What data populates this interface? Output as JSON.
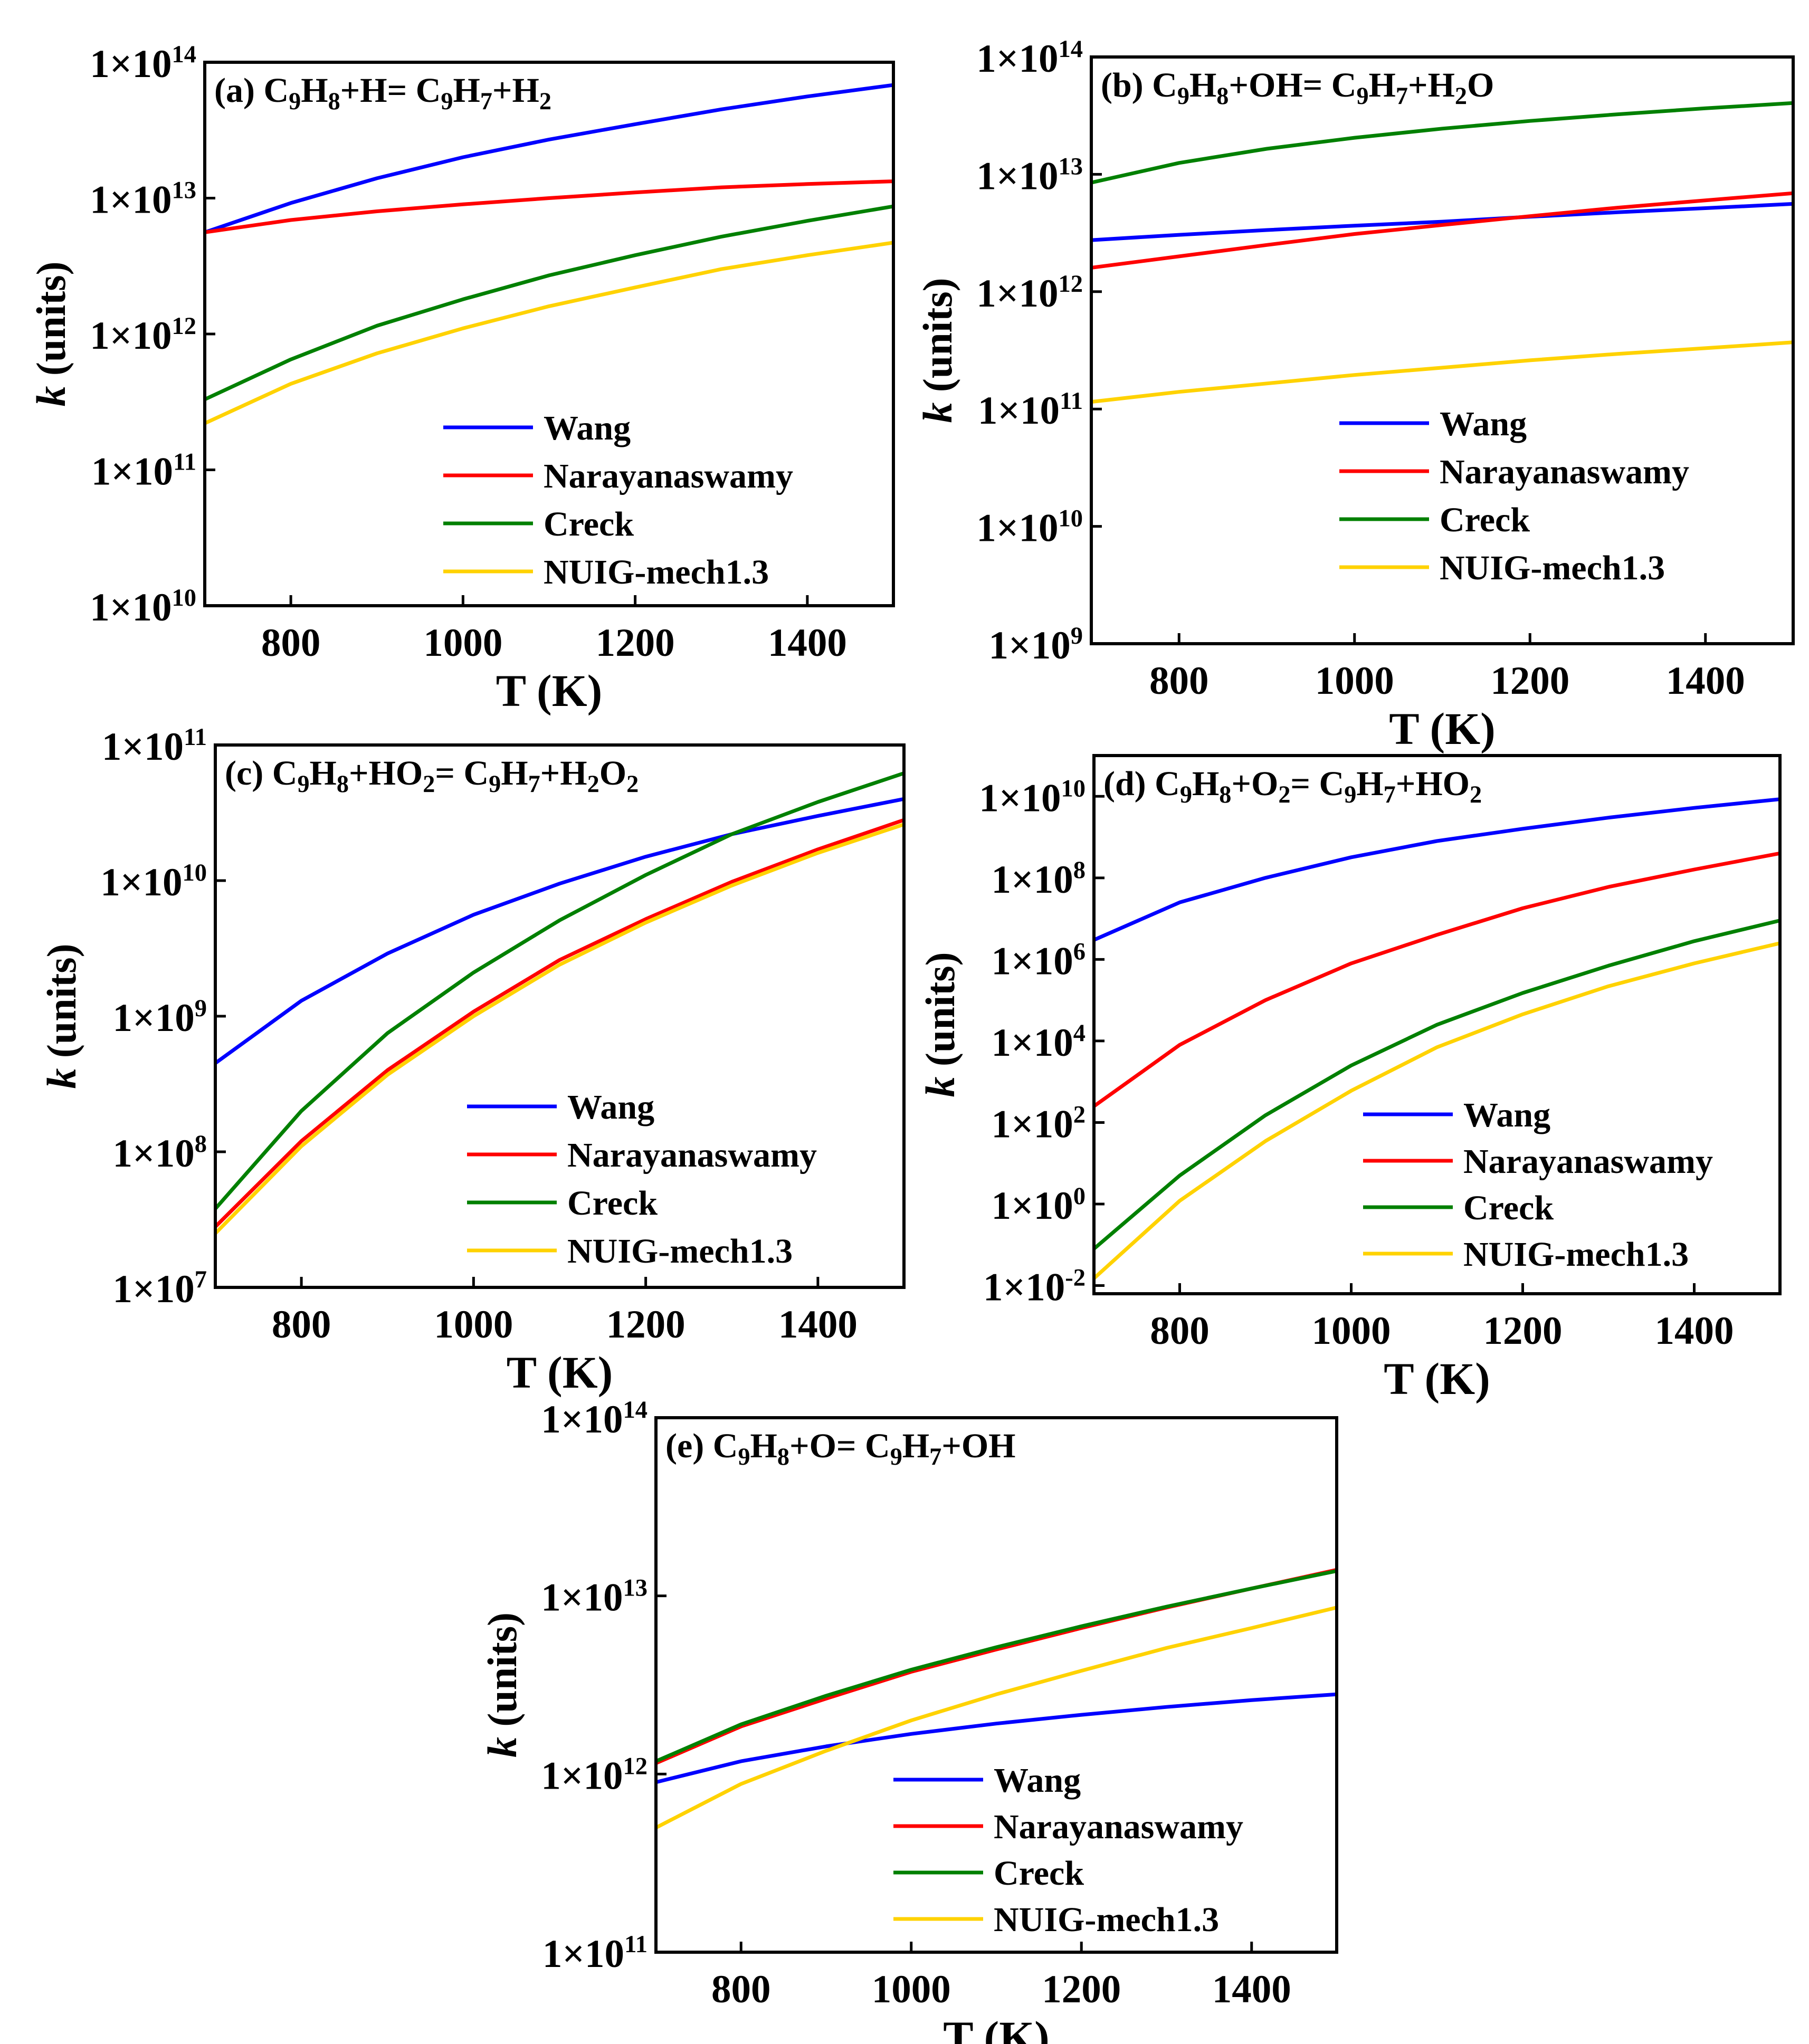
{
  "chart_data": [
    {
      "id": "a",
      "type": "line",
      "title": {
        "prefix": "(a) ",
        "parts": [
          [
            "C",
            ""
          ],
          [
            "9",
            "sub"
          ],
          [
            "H",
            ""
          ],
          [
            "8",
            "sub"
          ],
          [
            "+H= C",
            ""
          ],
          [
            "9",
            "sub"
          ],
          [
            "H",
            ""
          ],
          [
            "7",
            "sub"
          ],
          [
            "+H",
            ""
          ],
          [
            "2",
            "sub"
          ]
        ]
      },
      "title_text": "(a) C9H8+H= C9H7+H2",
      "xlabel": "T (K)",
      "ylabel": "k (units)",
      "xlim": [
        700,
        1500
      ],
      "xticks": [
        800,
        1000,
        1200,
        1400
      ],
      "ylim_exp": [
        10,
        14
      ],
      "yticks_exp": [
        10,
        11,
        12,
        13,
        14
      ],
      "ytick_labels": [
        "1×10^10",
        "1×10^11",
        "1×10^12",
        "1×10^13",
        "1×10^14"
      ],
      "legend_position": "lower-right",
      "x": [
        700,
        800,
        900,
        1000,
        1100,
        1200,
        1300,
        1400,
        1500
      ],
      "series": [
        {
          "name": "Wang",
          "color": "#0000ff",
          "values": [
            5600000000000.0,
            9200000000000.0,
            14000000000000.0,
            20000000000000.0,
            27000000000000.0,
            35000000000000.0,
            45000000000000.0,
            56000000000000.0,
            68000000000000.0
          ]
        },
        {
          "name": "Narayanaswamy",
          "color": "#ff0000",
          "values": [
            5600000000000.0,
            6900000000000.0,
            8000000000000.0,
            9000000000000.0,
            10000000000000.0,
            11000000000000.0,
            12000000000000.0,
            12700000000000.0,
            13300000000000.0
          ]
        },
        {
          "name": "Creck",
          "color": "#008000",
          "values": [
            330000000000.0,
            650000000000.0,
            1150000000000.0,
            1800000000000.0,
            2700000000000.0,
            3800000000000.0,
            5200000000000.0,
            6800000000000.0,
            8700000000000.0
          ]
        },
        {
          "name": "NUIG-mech1.3",
          "color": "#ffd200",
          "values": [
            220000000000.0,
            430000000000.0,
            720000000000.0,
            1100000000000.0,
            1600000000000.0,
            2200000000000.0,
            3000000000000.0,
            3800000000000.0,
            4700000000000.0
          ]
        }
      ]
    },
    {
      "id": "b",
      "type": "line",
      "title": {
        "prefix": "(b) ",
        "parts": [
          [
            "C",
            ""
          ],
          [
            "9",
            "sub"
          ],
          [
            "H",
            ""
          ],
          [
            "8",
            "sub"
          ],
          [
            "+OH= C",
            ""
          ],
          [
            "9",
            "sub"
          ],
          [
            "H",
            ""
          ],
          [
            "7",
            "sub"
          ],
          [
            "+H",
            ""
          ],
          [
            "2",
            "sub"
          ],
          [
            "O",
            ""
          ]
        ]
      },
      "title_text": "(b) C9H8+OH= C9H7+H2O",
      "xlabel": "T (K)",
      "ylabel": "k (units)",
      "xlim": [
        700,
        1500
      ],
      "xticks": [
        800,
        1000,
        1200,
        1400
      ],
      "ylim_exp": [
        9,
        14
      ],
      "yticks_exp": [
        9,
        10,
        11,
        12,
        13,
        14
      ],
      "ytick_labels": [
        "1×10^9",
        "1×10^10",
        "1×10^11",
        "1×10^12",
        "1×10^13",
        "1×10^14"
      ],
      "legend_position": "lower-right",
      "x": [
        700,
        800,
        900,
        1000,
        1100,
        1200,
        1300,
        1400,
        1500
      ],
      "series": [
        {
          "name": "Wang",
          "color": "#0000ff",
          "values": [
            2750000000000.0,
            3050000000000.0,
            3350000000000.0,
            3650000000000.0,
            3950000000000.0,
            4350000000000.0,
            4750000000000.0,
            5150000000000.0,
            5600000000000.0
          ]
        },
        {
          "name": "Narayanaswamy",
          "color": "#ff0000",
          "values": [
            1600000000000.0,
            2000000000000.0,
            2500000000000.0,
            3100000000000.0,
            3700000000000.0,
            4400000000000.0,
            5200000000000.0,
            6000000000000.0,
            6900000000000.0
          ]
        },
        {
          "name": "Creck",
          "color": "#008000",
          "values": [
            8500000000000.0,
            12500000000000.0,
            16500000000000.0,
            20500000000000.0,
            24500000000000.0,
            28500000000000.0,
            32500000000000.0,
            36500000000000.0,
            40500000000000.0
          ]
        },
        {
          "name": "NUIG-mech1.3",
          "color": "#ffd200",
          "values": [
            115000000000.0,
            140000000000.0,
            165000000000.0,
            195000000000.0,
            225000000000.0,
            260000000000.0,
            295000000000.0,
            330000000000.0,
            370000000000.0
          ]
        }
      ]
    },
    {
      "id": "c",
      "type": "line",
      "title": {
        "prefix": "(c) ",
        "parts": [
          [
            "C",
            ""
          ],
          [
            "9",
            "sub"
          ],
          [
            "H",
            ""
          ],
          [
            "8",
            "sub"
          ],
          [
            "+HO",
            ""
          ],
          [
            "2",
            "sub"
          ],
          [
            "= C",
            ""
          ],
          [
            "9",
            "sub"
          ],
          [
            "H",
            ""
          ],
          [
            "7",
            "sub"
          ],
          [
            "+H",
            ""
          ],
          [
            "2",
            "sub"
          ],
          [
            "O",
            ""
          ],
          [
            "2",
            "sub"
          ]
        ]
      },
      "title_text": "(c) C9H8+HO2= C9H7+H2O2",
      "xlabel": "T (K)",
      "ylabel": "k (units)",
      "xlim": [
        700,
        1500
      ],
      "xticks": [
        800,
        1000,
        1200,
        1400
      ],
      "ylim_exp": [
        7,
        11
      ],
      "yticks_exp": [
        7,
        8,
        9,
        10,
        11
      ],
      "ytick_labels": [
        "1×10^7",
        "1×10^8",
        "1×10^9",
        "1×10^10",
        "1×10^11"
      ],
      "legend_position": "lower-right",
      "x": [
        700,
        800,
        900,
        1000,
        1100,
        1200,
        1300,
        1400,
        1500
      ],
      "series": [
        {
          "name": "Wang",
          "color": "#0000ff",
          "values": [
            450000000.0,
            1300000000.0,
            2900000000.0,
            5600000000.0,
            9500000000.0,
            15000000000.0,
            22000000000.0,
            30000000000.0,
            40000000000.0
          ]
        },
        {
          "name": "Narayanaswamy",
          "color": "#ff0000",
          "values": [
            28000000.0,
            120000000.0,
            400000000.0,
            1080000000.0,
            2600000000.0,
            5200000000.0,
            9800000000.0,
            17000000000.0,
            28000000000.0
          ]
        },
        {
          "name": "Creck",
          "color": "#008000",
          "values": [
            38000000.0,
            200000000.0,
            750000000.0,
            2100000000.0,
            5100000000.0,
            11000000000.0,
            22000000000.0,
            38000000000.0,
            62000000000.0
          ]
        },
        {
          "name": "NUIG-mech1.3",
          "color": "#ffd200",
          "values": [
            25000000.0,
            110000000.0,
            370000000.0,
            1000000000.0,
            2400000000.0,
            4900000000.0,
            9200000000.0,
            16000000000.0,
            26000000000.0
          ]
        }
      ]
    },
    {
      "id": "d",
      "type": "line",
      "title": {
        "prefix": "(d) ",
        "parts": [
          [
            "C",
            ""
          ],
          [
            "9",
            "sub"
          ],
          [
            "H",
            ""
          ],
          [
            "8",
            "sub"
          ],
          [
            "+O",
            ""
          ],
          [
            "2",
            "sub"
          ],
          [
            "= C",
            ""
          ],
          [
            "9",
            "sub"
          ],
          [
            "H",
            ""
          ],
          [
            "7",
            "sub"
          ],
          [
            "+HO",
            ""
          ],
          [
            "2",
            "sub"
          ]
        ]
      },
      "title_text": "(d) C9H8+O2= C9H7+HO2",
      "xlabel": "T (K)",
      "ylabel": "k (units)",
      "xlim": [
        700,
        1500
      ],
      "xticks": [
        800,
        1000,
        1200,
        1400
      ],
      "ylim_exp": [
        -2.2,
        11
      ],
      "yticks_exp": [
        -2,
        0,
        2,
        4,
        6,
        8,
        10
      ],
      "ytick_labels": [
        "1×10^-2",
        "1×10^0",
        "1×10^2",
        "1×10^4",
        "1×10^6",
        "1×10^8",
        "1×10^10"
      ],
      "legend_position": "lower-right",
      "x": [
        700,
        800,
        900,
        1000,
        1100,
        1200,
        1300,
        1400,
        1500
      ],
      "series": [
        {
          "name": "Wang",
          "color": "#0000ff",
          "values": [
            3000000.0,
            25000000.0,
            100000000.0,
            320000000.0,
            800000000.0,
            1600000000.0,
            3000000000.0,
            5200000000.0,
            8500000000.0
          ]
        },
        {
          "name": "Narayanaswamy",
          "color": "#ff0000",
          "values": [
            250,
            8000,
            100000.0,
            800000.0,
            4000000.0,
            18000000.0,
            60000000.0,
            160000000.0,
            400000000.0
          ]
        },
        {
          "name": "Creck",
          "color": "#008000",
          "values": [
            0.08,
            5,
            150,
            2500,
            25000.0,
            150000.0,
            700000.0,
            2800000.0,
            9000000.0
          ]
        },
        {
          "name": "NUIG-mech1.3",
          "color": "#ffd200",
          "values": [
            0.015,
            1.2,
            35,
            600,
            7000,
            45000.0,
            220000.0,
            800000.0,
            2500000.0
          ]
        }
      ]
    },
    {
      "id": "e",
      "type": "line",
      "title": {
        "prefix": "(e) ",
        "parts": [
          [
            "C",
            ""
          ],
          [
            "9",
            "sub"
          ],
          [
            "H",
            ""
          ],
          [
            "8",
            "sub"
          ],
          [
            "+O= C",
            ""
          ],
          [
            "9",
            "sub"
          ],
          [
            "H",
            ""
          ],
          [
            "7",
            "sub"
          ],
          [
            "+OH",
            ""
          ]
        ]
      },
      "title_text": "(e) C9H8+O= C9H7+OH",
      "xlabel": "T (K)",
      "ylabel": "k (units)",
      "xlim": [
        700,
        1500
      ],
      "xticks": [
        800,
        1000,
        1200,
        1400
      ],
      "ylim_exp": [
        11,
        14
      ],
      "yticks_exp": [
        11,
        12,
        13,
        14
      ],
      "ytick_labels": [
        "1×10^11",
        "1×10^12",
        "1×10^13",
        "1×10^14"
      ],
      "legend_position": "lower-right",
      "x": [
        700,
        800,
        900,
        1000,
        1100,
        1200,
        1300,
        1400,
        1500
      ],
      "series": [
        {
          "name": "Wang",
          "color": "#0000ff",
          "values": [
            900000000000.0,
            1180000000000.0,
            1430000000000.0,
            1680000000000.0,
            1920000000000.0,
            2150000000000.0,
            2380000000000.0,
            2600000000000.0,
            2800000000000.0
          ]
        },
        {
          "name": "Narayanaswamy",
          "color": "#ff0000",
          "values": [
            1150000000000.0,
            1850000000000.0,
            2650000000000.0,
            3750000000000.0,
            5000000000000.0,
            6600000000000.0,
            8600000000000.0,
            11000000000000.0,
            14000000000000.0
          ]
        },
        {
          "name": "Creck",
          "color": "#008000",
          "values": [
            1180000000000.0,
            1900000000000.0,
            2750000000000.0,
            3850000000000.0,
            5150000000000.0,
            6750000000000.0,
            8700000000000.0,
            11000000000000.0,
            13800000000000.0
          ]
        },
        {
          "name": "NUIG-mech1.3",
          "color": "#ffd200",
          "values": [
            500000000000.0,
            880000000000.0,
            1350000000000.0,
            2000000000000.0,
            2800000000000.0,
            3800000000000.0,
            5100000000000.0,
            6600000000000.0,
            8600000000000.0
          ]
        }
      ]
    }
  ]
}
